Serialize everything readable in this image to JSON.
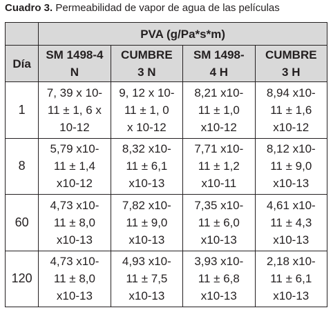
{
  "caption": {
    "label": "Cuadro 3.",
    "text": "Permeabilidad de vapor de agua de las películas"
  },
  "table": {
    "group_header": "PVA (g/Pa*s*m)",
    "day_header": "Día",
    "columns": [
      [
        "SM 1498-4",
        "N"
      ],
      [
        "CUMBRE",
        "3 N"
      ],
      [
        "SM 1498-",
        "4 H"
      ],
      [
        "CUMBRE",
        "3 H"
      ]
    ],
    "rows": [
      {
        "day": "1",
        "cells": [
          [
            "7, 39 x 10-",
            "11 ± 1, 6 x",
            "10-12"
          ],
          [
            "9, 12 x 10-",
            "11 ± 1, 0",
            "x 10-12"
          ],
          [
            "8,21 x10-",
            "11 ± 1,0",
            "x10-12"
          ],
          [
            "8,94 x10-",
            "11 ± 1,6",
            "x10-12"
          ]
        ]
      },
      {
        "day": "8",
        "cells": [
          [
            "5,79 x10-",
            "11 ± 1,4",
            "x10-12"
          ],
          [
            "8,32 x10-",
            "11 ± 6,1",
            "x10-13"
          ],
          [
            "7,71 x10-",
            "11 ± 1,2",
            "x10-11"
          ],
          [
            "8,12 x10-",
            "11 ± 9,0",
            "x10-13"
          ]
        ]
      },
      {
        "day": "60",
        "cells": [
          [
            "4,73 x10-",
            "11 ± 8,0",
            "x10-13"
          ],
          [
            "7,82 x10-",
            "11 ± 9,0",
            "x10-13"
          ],
          [
            "7,35 x10-",
            "11 ± 6,0",
            "x10-13"
          ],
          [
            "4,61 x10-",
            "11 ± 4,3",
            "x10-13"
          ]
        ]
      },
      {
        "day": "120",
        "cells": [
          [
            "4,73 x10-",
            "11 ± 8,0",
            "x10-13"
          ],
          [
            "4,93 x10-",
            "11 ± 7,5",
            "x10-13"
          ],
          [
            "3,93 x10-",
            "11 ± 6,8",
            "x10-13"
          ],
          [
            "2,18 x10-",
            "11 ± 6,1",
            "x10-13"
          ]
        ]
      }
    ]
  }
}
